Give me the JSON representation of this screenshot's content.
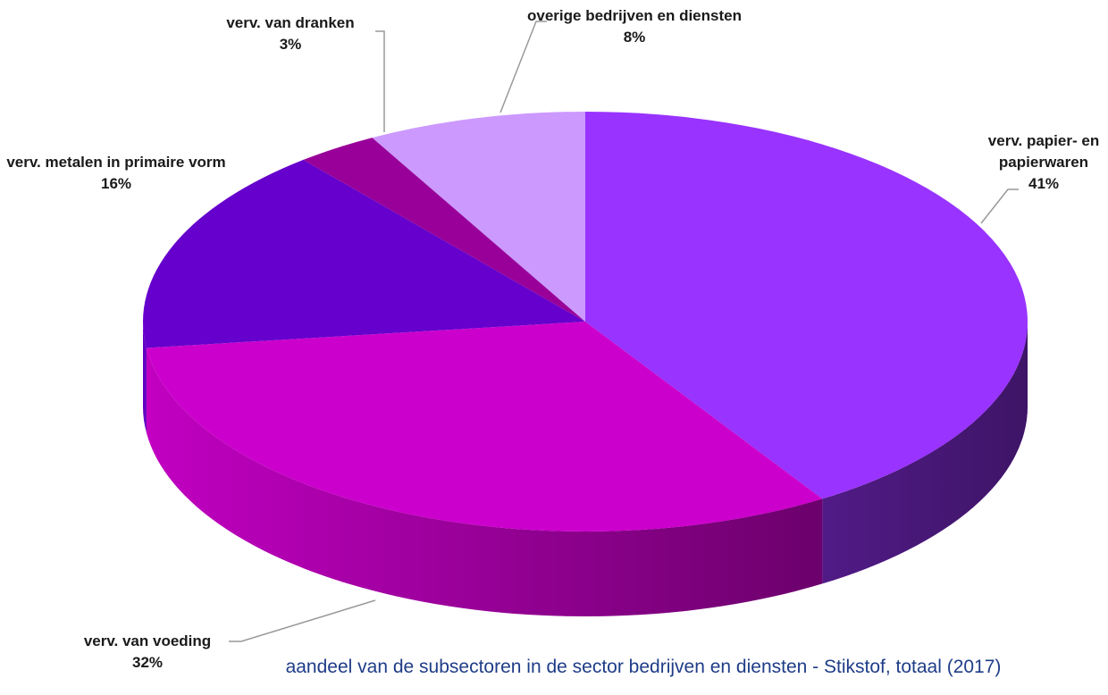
{
  "chart_data": {
    "type": "pie",
    "title": "aandeel van de subsectoren in de sector bedrijven en diensten - Stikstof, totaal (2017)",
    "categories": [
      "verv. papier- en papierwaren",
      "verv. van voeding",
      "verv. metalen in primaire vorm",
      "verv. van dranken",
      "overige bedrijven en diensten"
    ],
    "values": [
      41,
      32,
      16,
      3,
      8
    ],
    "value_labels": [
      "41%",
      "32%",
      "16%",
      "3%",
      "8%"
    ],
    "colors": [
      "#9933ff",
      "#cc00cc",
      "#6600cc",
      "#990099",
      "#cc99ff"
    ]
  }
}
